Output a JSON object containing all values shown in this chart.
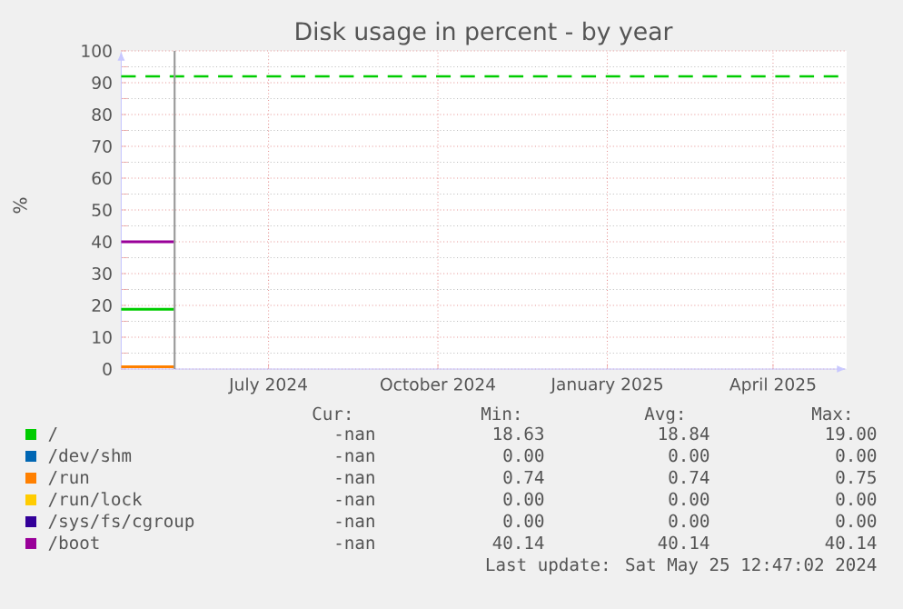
{
  "chart_data": {
    "type": "line",
    "title": "Disk usage in percent - by year",
    "ylabel": "%",
    "x": [
      "2024-04-26",
      "2024-05-25"
    ],
    "series": [
      {
        "name": "/",
        "color": "#00cc00",
        "values": [
          18.8,
          18.8
        ]
      },
      {
        "name": "/dev/shm",
        "color": "#0066b3",
        "values": [
          null,
          null
        ]
      },
      {
        "name": "/run",
        "color": "#ff8000",
        "values": [
          0.7,
          0.7
        ]
      },
      {
        "name": "/run/lock",
        "color": "#ffcc00",
        "values": [
          null,
          null
        ]
      },
      {
        "name": "/sys/fs/cgroup",
        "color": "#330099",
        "values": [
          null,
          null
        ]
      },
      {
        "name": "/boot",
        "color": "#990099",
        "values": [
          40,
          40
        ]
      }
    ],
    "xlim": [
      "2024-04-26",
      "2025-05-25"
    ],
    "xticks": [
      {
        "value": "2024-07-15",
        "label": "July 2024"
      },
      {
        "value": "2024-10-15",
        "label": "October 2024"
      },
      {
        "value": "2025-01-15",
        "label": "January 2025"
      },
      {
        "value": "2025-04-15",
        "label": "April 2025"
      }
    ],
    "ylim": [
      0,
      100
    ],
    "yticks": [
      0,
      10,
      20,
      30,
      40,
      50,
      60,
      70,
      80,
      90,
      100
    ],
    "ref_lines": [
      {
        "axis": "y",
        "value": 92,
        "color": "#00cc00",
        "line_style": "dashed"
      },
      {
        "axis": "x",
        "value": "2024-05-25",
        "color": "#999999",
        "line_style": "solid"
      }
    ],
    "annotations": [
      "Cur:",
      "Min:",
      "Avg:",
      "Max:",
      "-nan",
      "18.63",
      "18.84",
      "19.00",
      "-nan",
      "0.00",
      "0.00",
      "0.00",
      "-nan",
      "0.74",
      "0.74",
      "0.75",
      "-nan",
      "0.00",
      "0.00",
      "0.00",
      "-nan",
      "0.00",
      "0.00",
      "0.00",
      "-nan",
      "40.14",
      "40.14",
      "40.14",
      "Last update: Sat May 25 12:47:02 2024"
    ],
    "grid": true,
    "legend": "bottom",
    "marker": "none",
    "line_style": "solid"
  }
}
